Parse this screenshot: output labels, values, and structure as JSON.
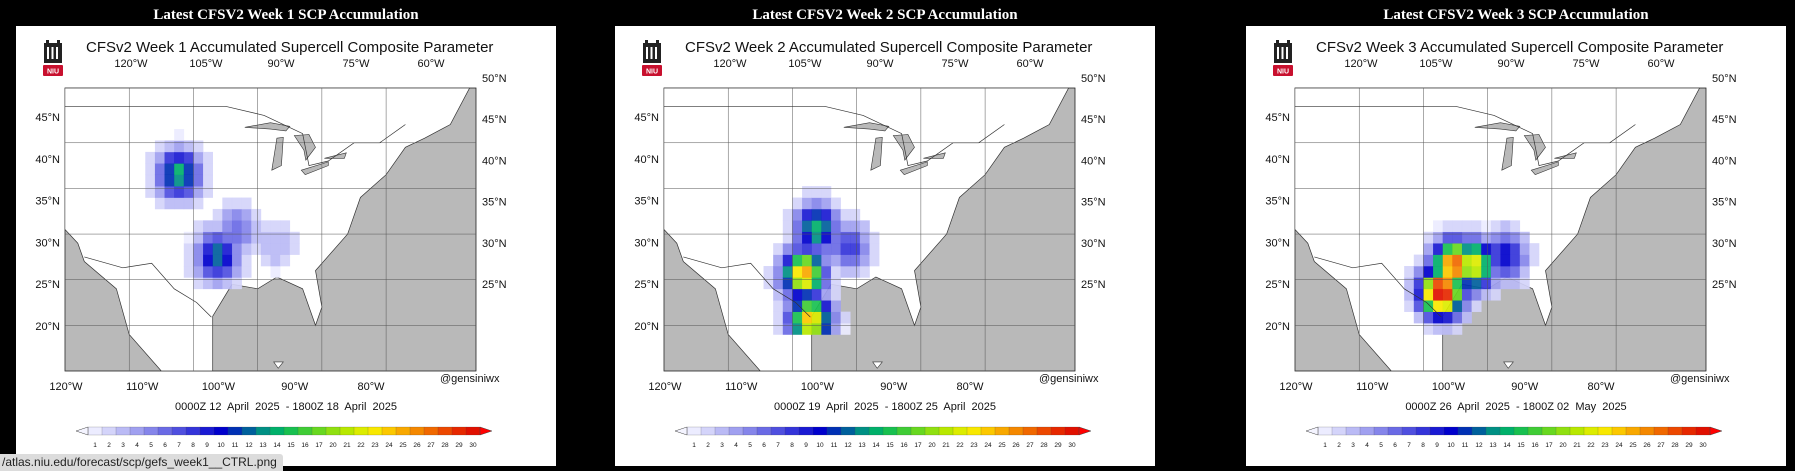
{
  "panels": [
    {
      "page_title": "Latest CFSV2 Week 1 SCP Accumulation",
      "heading": "CFSv2 Week 1 Accumulated Supercell Composite Parameter",
      "logo_text": "NIU",
      "credit": "@gensiniwx",
      "date_range": "0000Z 12  April  2025  - 1800Z 18  April  2025",
      "chart_data": {
        "type": "heatmap",
        "title": "CFSv2 Week 1 Accumulated Supercell Composite Parameter",
        "top_lon_labels": [
          "120°W",
          "105°W",
          "90°W",
          "75°W",
          "60°W"
        ],
        "bottom_lon_labels": [
          "120°W",
          "110°W",
          "100°W",
          "90°W",
          "80°W"
        ],
        "left_lat_labels": [
          "45°N",
          "40°N",
          "35°N",
          "30°N",
          "25°N",
          "20°N"
        ],
        "right_lat_labels": [
          "50°N",
          "45°N",
          "40°N",
          "35°N",
          "30°N",
          "25°N"
        ],
        "colorbar_ticks": [
          "1",
          "2",
          "3",
          "4",
          "5",
          "6",
          "7",
          "8",
          "9",
          "10",
          "11",
          "12",
          "13",
          "14",
          "15",
          "16",
          "17",
          "20",
          "21",
          "22",
          "23",
          "24",
          "25",
          "26",
          "27",
          "28",
          "29",
          "30"
        ],
        "hotspots": [
          {
            "lon": -103,
            "lat": 41,
            "peak": 14
          },
          {
            "lon": -97,
            "lat": 32,
            "peak": 12
          },
          {
            "lon": -94,
            "lat": 35,
            "peak": 6
          },
          {
            "lon": -88,
            "lat": 33,
            "peak": 3
          }
        ]
      }
    },
    {
      "page_title": "Latest CFSV2 Week 2 SCP Accumulation",
      "heading": "CFSv2 Week 2 Accumulated Supercell Composite Parameter",
      "logo_text": "NIU",
      "credit": "@gensiniwx",
      "date_range": "0000Z 19  April  2025  - 1800Z 25  April  2025",
      "chart_data": {
        "type": "heatmap",
        "title": "CFSv2 Week 2 Accumulated Supercell Composite Parameter",
        "top_lon_labels": [
          "120°W",
          "105°W",
          "90°W",
          "75°W",
          "60°W"
        ],
        "bottom_lon_labels": [
          "120°W",
          "110°W",
          "100°W",
          "90°W",
          "80°W"
        ],
        "left_lat_labels": [
          "45°N",
          "40°N",
          "35°N",
          "30°N",
          "25°N",
          "20°N"
        ],
        "right_lat_labels": [
          "50°N",
          "45°N",
          "40°N",
          "35°N",
          "30°N",
          "25°N"
        ],
        "colorbar_ticks": [
          "1",
          "2",
          "3",
          "4",
          "5",
          "6",
          "7",
          "8",
          "9",
          "10",
          "11",
          "12",
          "13",
          "14",
          "15",
          "16",
          "17",
          "20",
          "21",
          "22",
          "23",
          "24",
          "25",
          "26",
          "27",
          "28",
          "29",
          "30"
        ],
        "hotspots": [
          {
            "lon": -99,
            "lat": 30,
            "peak": 23
          },
          {
            "lon": -98,
            "lat": 25,
            "peak": 22
          },
          {
            "lon": -97,
            "lat": 35,
            "peak": 14
          },
          {
            "lon": -92,
            "lat": 33,
            "peak": 8
          }
        ]
      }
    },
    {
      "page_title": "Latest CFSV2 Week 3 SCP Accumulation",
      "heading": "CFSv2 Week 3 Accumulated Supercell Composite Parameter",
      "logo_text": "NIU",
      "credit": "@gensiniwx",
      "date_range": "0000Z 26  April  2025  - 1800Z 02  May  2025",
      "chart_data": {
        "type": "heatmap",
        "title": "CFSv2 Week 3 Accumulated Supercell Composite Parameter",
        "top_lon_labels": [
          "120°W",
          "105°W",
          "90°W",
          "75°W",
          "60°W"
        ],
        "bottom_lon_labels": [
          "120°W",
          "110°W",
          "100°W",
          "90°W",
          "80°W"
        ],
        "left_lat_labels": [
          "45°N",
          "40°N",
          "35°N",
          "30°N",
          "25°N",
          "20°N"
        ],
        "right_lat_labels": [
          "50°N",
          "45°N",
          "40°N",
          "35°N",
          "30°N",
          "25°N"
        ],
        "colorbar_ticks": [
          "1",
          "2",
          "3",
          "4",
          "5",
          "6",
          "7",
          "8",
          "9",
          "10",
          "11",
          "12",
          "13",
          "14",
          "15",
          "16",
          "17",
          "20",
          "21",
          "22",
          "23",
          "24",
          "25",
          "26",
          "27",
          "28",
          "29",
          "30"
        ],
        "hotspots": [
          {
            "lon": -98,
            "lat": 28,
            "peak": 30
          },
          {
            "lon": -96,
            "lat": 31,
            "peak": 26
          },
          {
            "lon": -93,
            "lat": 31,
            "peak": 21
          },
          {
            "lon": -88,
            "lat": 32,
            "peak": 10
          }
        ]
      }
    }
  ],
  "status_url": "/atlas.niu.edu/forecast/scp/gefs_week1__CTRL.png",
  "colors": {
    "background": "#000000",
    "land": "#ffffff",
    "ocean": "#b9b9b9",
    "scale": [
      "#ececff",
      "#d4d4fa",
      "#babaf5",
      "#a0a0f0",
      "#8585ea",
      "#6a6ae5",
      "#4f4fdf",
      "#3434d9",
      "#1a1ad3",
      "#0000cc",
      "#0030b4",
      "#00609c",
      "#009084",
      "#00b06a",
      "#18c050",
      "#40cc36",
      "#68d820",
      "#90e010",
      "#b8e800",
      "#dcec00",
      "#f8e800",
      "#fcc800",
      "#f8a800",
      "#f48800",
      "#f06800",
      "#ec4800",
      "#e62800",
      "#e01000"
    ]
  }
}
